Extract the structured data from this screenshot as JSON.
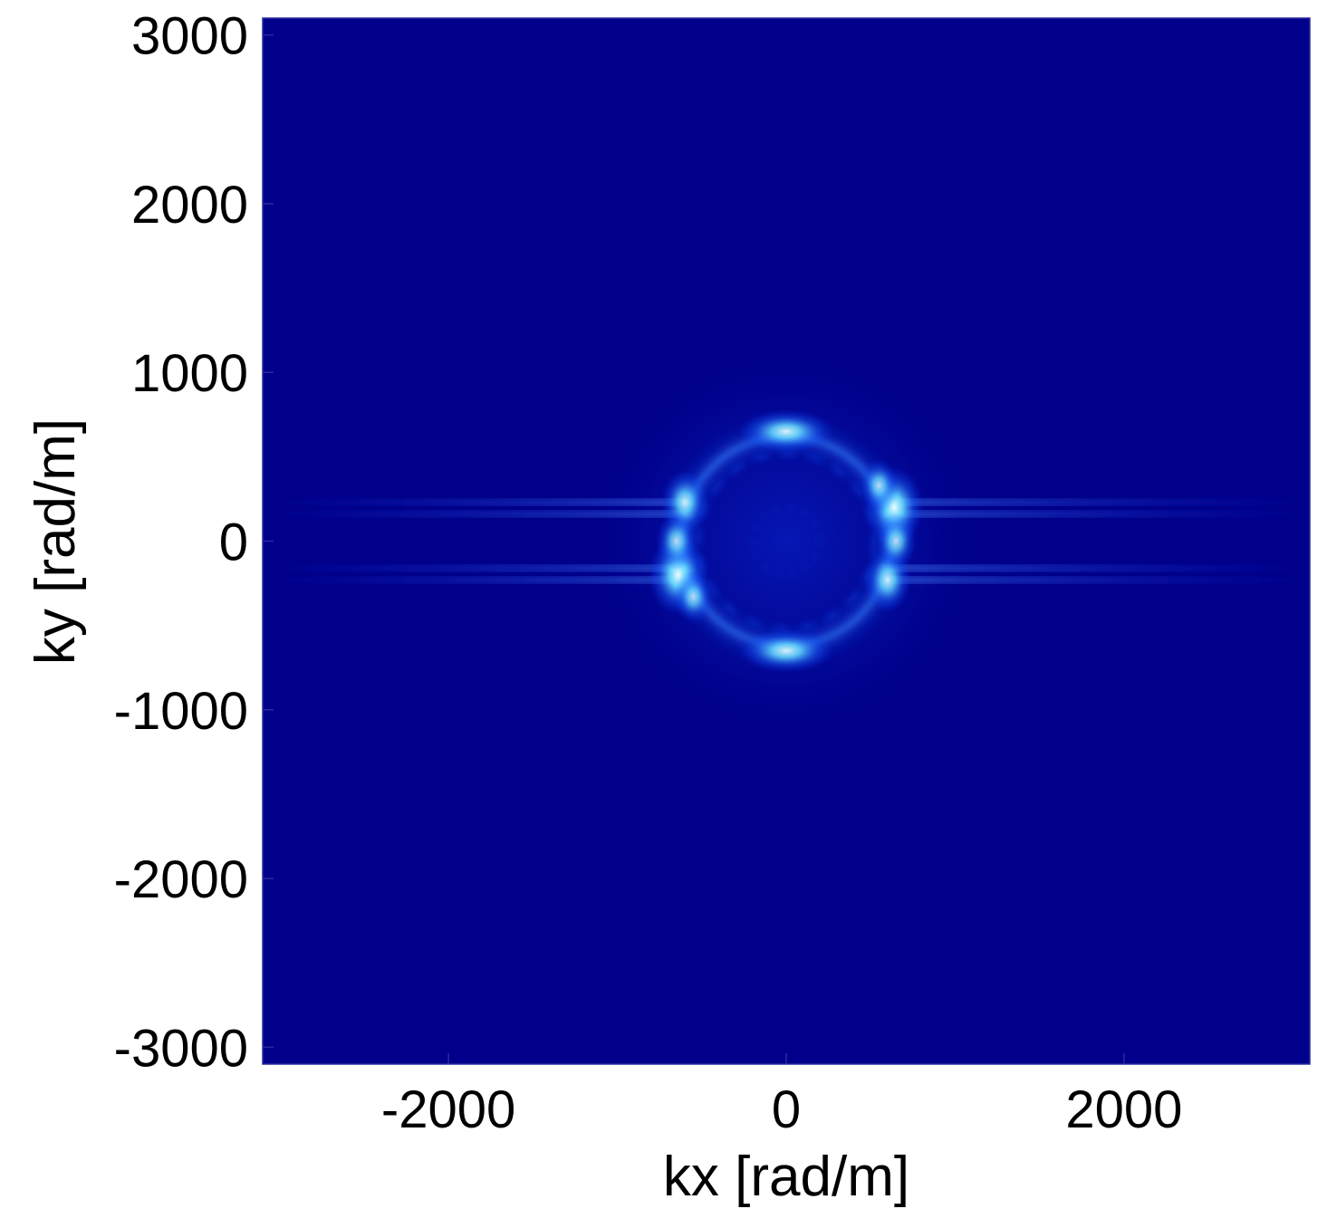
{
  "chart_data": {
    "type": "heatmap",
    "title": "",
    "xlabel": "kx [rad/m]",
    "ylabel": "ky [rad/m]",
    "xlim": [
      -3100,
      3100
    ],
    "ylim": [
      -3100,
      3100
    ],
    "x_ticks": [
      -2000,
      0,
      2000
    ],
    "x_tick_labels": [
      "-2000",
      "0",
      "2000"
    ],
    "y_ticks": [
      3000,
      2000,
      1000,
      0,
      -1000,
      -2000,
      -3000
    ],
    "y_tick_labels": [
      "3000",
      "2000",
      "1000",
      "0",
      "-1000",
      "-2000",
      "-3000"
    ],
    "grid": false,
    "legend": "none",
    "colormap": "jet",
    "colors": {
      "background": "#00008a",
      "low": "#000099",
      "mid": "#0044ff",
      "high": "#66ddff",
      "peak": "#e8ffff"
    },
    "features": {
      "ring_radius": 620,
      "inner_ring_radius": 520,
      "streak_ky": [
        230,
        160,
        -160,
        -230
      ],
      "hotspots": [
        {
          "kx": 640,
          "ky": 200,
          "intensity": 1.0
        },
        {
          "kx": -640,
          "ky": -200,
          "intensity": 1.0
        },
        {
          "kx": -600,
          "ky": 230,
          "intensity": 0.75
        },
        {
          "kx": 600,
          "ky": -230,
          "intensity": 0.75
        },
        {
          "kx": 0,
          "ky": 650,
          "intensity": 0.85
        },
        {
          "kx": 0,
          "ky": -650,
          "intensity": 0.85
        },
        {
          "kx": -650,
          "ky": 0,
          "intensity": 0.6
        },
        {
          "kx": 650,
          "ky": 0,
          "intensity": 0.6
        },
        {
          "kx": -550,
          "ky": -330,
          "intensity": 0.55
        },
        {
          "kx": 550,
          "ky": 330,
          "intensity": 0.55
        }
      ]
    }
  }
}
